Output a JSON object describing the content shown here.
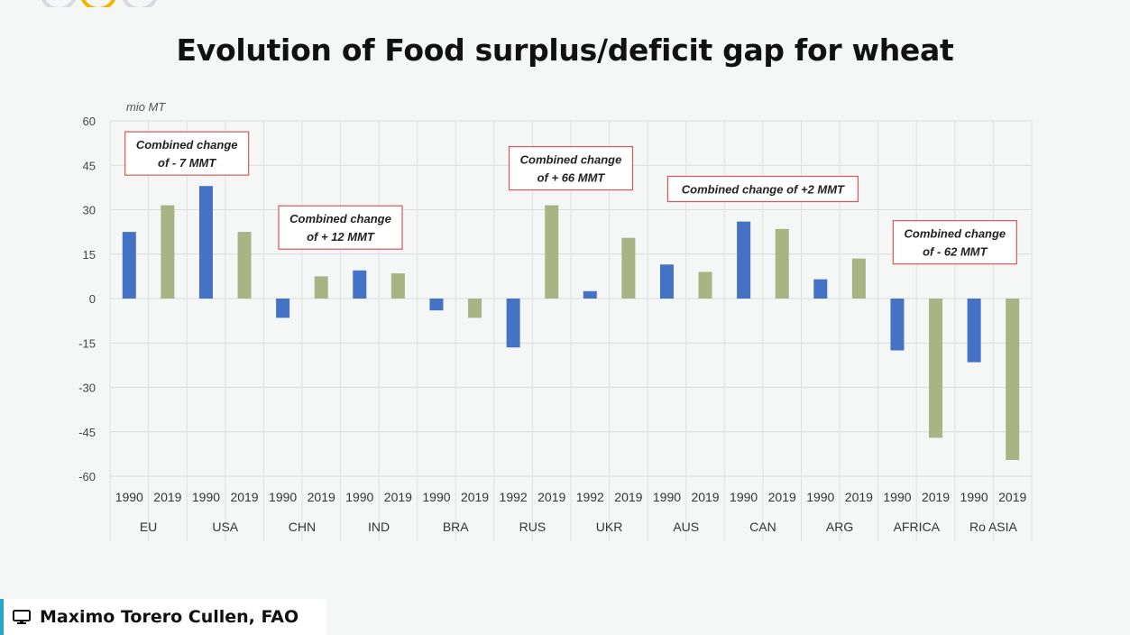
{
  "title": "Evolution of Food surplus/deficit gap for wheat",
  "presenter": {
    "name": "Maximo Torero Cullen, FAO",
    "icon": "monitor-icon"
  },
  "chart_data": {
    "type": "bar",
    "title": "Evolution of Food surplus/deficit gap for wheat",
    "unit_label": "mio MT",
    "ylim": [
      -60,
      60
    ],
    "y_ticks": [
      60,
      45,
      30,
      15,
      0,
      -15,
      -30,
      -45,
      -60
    ],
    "grid": true,
    "colors": {
      "first_year": "#4472c4",
      "second_year": "#a9b383"
    },
    "groups": [
      {
        "name": "EU",
        "bars": [
          {
            "year": "1990",
            "value": 22.5
          },
          {
            "year": "2019",
            "value": 31.5
          }
        ]
      },
      {
        "name": "USA",
        "bars": [
          {
            "year": "1990",
            "value": 38
          },
          {
            "year": "2019",
            "value": 22.5
          }
        ]
      },
      {
        "name": "CHN",
        "bars": [
          {
            "year": "1990",
            "value": -6.5
          },
          {
            "year": "2019",
            "value": 7.5
          }
        ]
      },
      {
        "name": "IND",
        "bars": [
          {
            "year": "1990",
            "value": 9.5
          },
          {
            "year": "2019",
            "value": 8.5
          }
        ]
      },
      {
        "name": "BRA",
        "bars": [
          {
            "year": "1990",
            "value": -4
          },
          {
            "year": "2019",
            "value": -6.5
          }
        ]
      },
      {
        "name": "RUS",
        "bars": [
          {
            "year": "1992",
            "value": -16.5
          },
          {
            "year": "2019",
            "value": 31.5
          }
        ]
      },
      {
        "name": "UKR",
        "bars": [
          {
            "year": "1992",
            "value": 2.5
          },
          {
            "year": "2019",
            "value": 20.5
          }
        ]
      },
      {
        "name": "AUS",
        "bars": [
          {
            "year": "1990",
            "value": 11.5
          },
          {
            "year": "2019",
            "value": 9
          }
        ]
      },
      {
        "name": "CAN",
        "bars": [
          {
            "year": "1990",
            "value": 26
          },
          {
            "year": "2019",
            "value": 23.5
          }
        ]
      },
      {
        "name": "ARG",
        "bars": [
          {
            "year": "1990",
            "value": 6.5
          },
          {
            "year": "2019",
            "value": 13.5
          }
        ]
      },
      {
        "name": "AFRICA",
        "bars": [
          {
            "year": "1990",
            "value": -17.5
          },
          {
            "year": "2019",
            "value": -47
          }
        ]
      },
      {
        "name": "Ro ASIA",
        "bars": [
          {
            "year": "1990",
            "value": -21.5
          },
          {
            "year": "2019",
            "value": -54.5
          }
        ]
      }
    ],
    "annotations": [
      {
        "lines": [
          "Combined change",
          "of - 7 MMT"
        ],
        "groups": [
          0,
          1
        ],
        "near_value": 49
      },
      {
        "lines": [
          "Combined change",
          "of + 12 MMT"
        ],
        "groups": [
          2,
          3
        ],
        "near_value": 24
      },
      {
        "lines": [
          "Combined change",
          "of  + 66 MMT"
        ],
        "groups": [
          5,
          6
        ],
        "near_value": 44
      },
      {
        "lines": [
          "Combined change of +2 MMT"
        ],
        "groups": [
          7,
          9
        ],
        "near_value": 37
      },
      {
        "lines": [
          "Combined change",
          "of - 62 MMT"
        ],
        "groups": [
          10,
          11
        ],
        "near_value": 19
      }
    ]
  }
}
